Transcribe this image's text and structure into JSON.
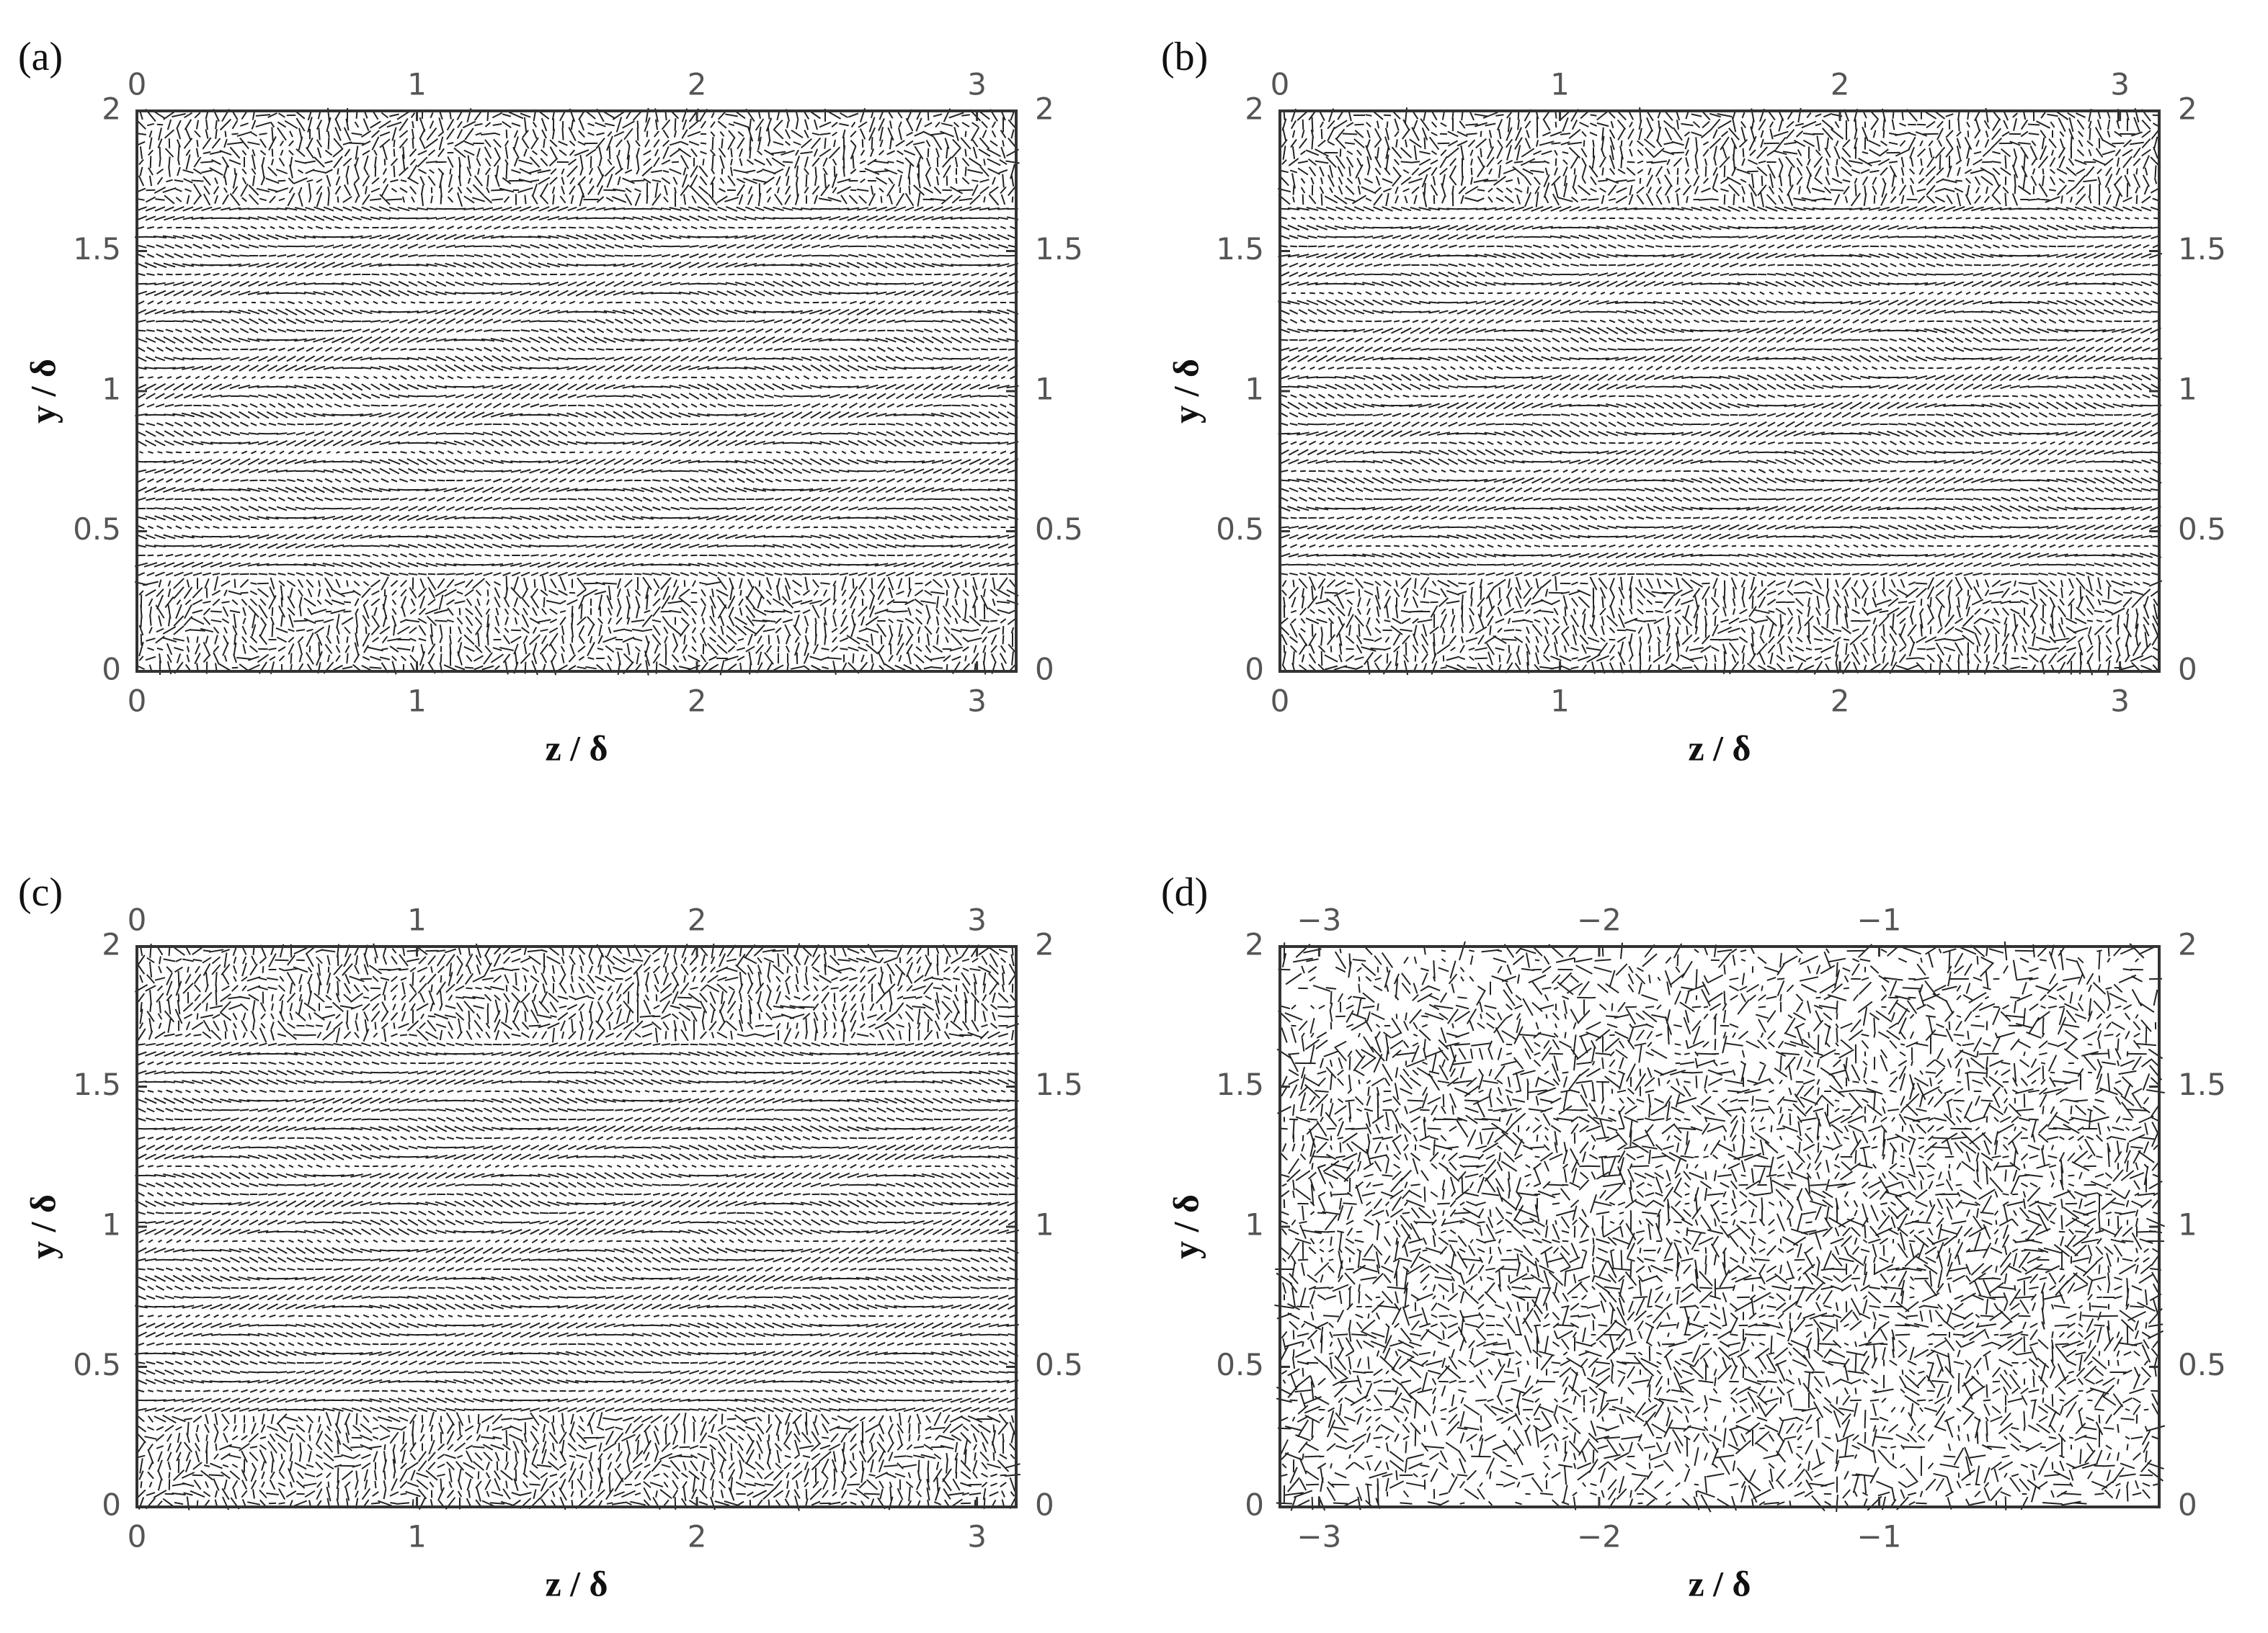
{
  "chart_data": [
    {
      "type": "quiver",
      "panel_label": "(a)",
      "x_label": "z / δ",
      "y_label": "y / δ",
      "xlim": [
        0,
        3.14
      ],
      "ylim": [
        0,
        2
      ],
      "xticks": [
        0,
        1,
        2,
        3
      ],
      "yticks": [
        0,
        0.5,
        1,
        1.5,
        2
      ]
    },
    {
      "type": "quiver",
      "panel_label": "(b)",
      "x_label": "z / δ",
      "y_label": "y / δ",
      "xlim": [
        0,
        3.14
      ],
      "ylim": [
        0,
        2
      ],
      "xticks": [
        0,
        1,
        2,
        3
      ],
      "yticks": [
        0,
        0.5,
        1,
        1.5,
        2
      ]
    },
    {
      "type": "quiver",
      "panel_label": "(c)",
      "x_label": "z / δ",
      "y_label": "y / δ",
      "xlim": [
        0,
        3.14
      ],
      "ylim": [
        0,
        2
      ],
      "xticks": [
        0,
        1,
        2,
        3
      ],
      "yticks": [
        0,
        0.5,
        1,
        1.5,
        2
      ]
    },
    {
      "type": "quiver-random",
      "panel_label": "(d)",
      "x_label": "z / δ",
      "y_label": "y / δ",
      "xlim": [
        -3.14,
        0
      ],
      "ylim": [
        0,
        2
      ],
      "xticks": [
        {
          "value": -3,
          "label": "−3"
        },
        {
          "value": -2,
          "label": "−2"
        },
        {
          "value": -1,
          "label": "−1"
        }
      ],
      "yticks": [
        0,
        0.5,
        1,
        1.5,
        2
      ]
    }
  ]
}
